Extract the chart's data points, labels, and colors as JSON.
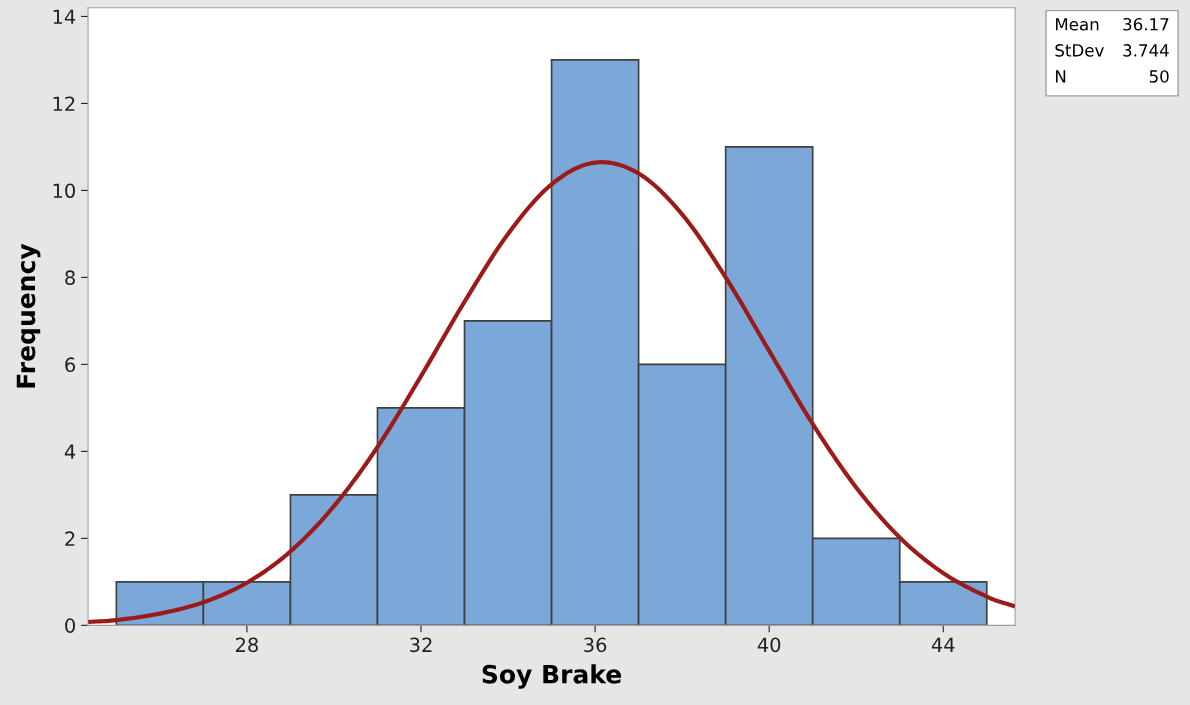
{
  "chart_data": {
    "type": "histogram",
    "xlabel": "Soy Brake",
    "ylabel": "Frequency",
    "bins": [
      25,
      27,
      29,
      31,
      33,
      35,
      37,
      39,
      41,
      43,
      45
    ],
    "values": [
      1,
      1,
      3,
      5,
      7,
      13,
      6,
      11,
      2,
      1
    ],
    "color": "#7ba7d9",
    "series": [
      {
        "type": "line",
        "color": "#9b1b1b",
        "x": [
          24.4,
          25,
          26,
          27,
          28,
          29,
          30,
          31,
          32,
          33,
          34,
          35,
          36,
          37,
          38,
          39,
          40,
          41,
          42,
          43,
          44,
          45,
          45.6
        ],
        "values": [
          0.08,
          0.12,
          0.27,
          0.53,
          0.98,
          1.7,
          2.74,
          4.1,
          5.73,
          7.44,
          9.0,
          10.14,
          10.64,
          10.39,
          9.45,
          8.0,
          6.31,
          4.63,
          3.17,
          2.02,
          1.2,
          0.66,
          0.45
        ]
      }
    ],
    "xlim": [
      24.35,
      45.65
    ],
    "ylim": [
      0,
      14.2
    ],
    "xticks": [
      28,
      32,
      36,
      40,
      44
    ],
    "yticks": [
      0,
      2,
      4,
      6,
      8,
      10,
      12,
      14
    ],
    "grid": false,
    "legend": false,
    "annotations": [
      "Mean 36.17",
      "StDev 3.744",
      "N 50"
    ]
  }
}
